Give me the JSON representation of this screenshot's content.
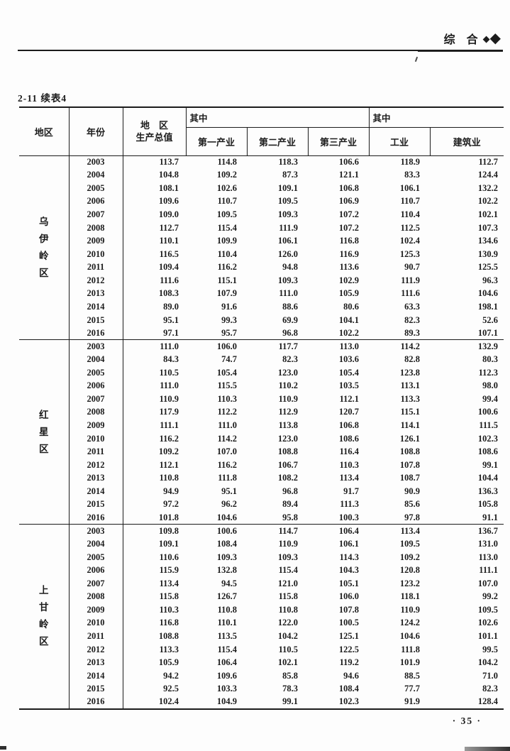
{
  "page_header": {
    "section_title": "综 合",
    "diamond_small": "◆",
    "diamond_large": "◆"
  },
  "table_label": "2-11 续表4",
  "page_number": "· 35 ·",
  "table": {
    "headers": {
      "region": "地区",
      "year": "年份",
      "gdp_line1": "地　区",
      "gdp_line2": "生产总值",
      "among1": "其中",
      "among2": "其中",
      "primary": "第一产业",
      "secondary": "第二产业",
      "tertiary": "第三产业",
      "industry": "工业",
      "construction": "建筑业"
    },
    "blocks": [
      {
        "region": "乌伊岭区",
        "rows": [
          {
            "year": "2003",
            "values": [
              "113.7",
              "114.8",
              "118.3",
              "106.6",
              "118.9",
              "112.7"
            ]
          },
          {
            "year": "2004",
            "values": [
              "104.8",
              "109.2",
              "87.3",
              "121.1",
              "83.3",
              "124.4"
            ]
          },
          {
            "year": "2005",
            "values": [
              "108.1",
              "102.6",
              "109.1",
              "106.8",
              "106.1",
              "132.2"
            ]
          },
          {
            "year": "2006",
            "values": [
              "109.6",
              "110.7",
              "109.5",
              "106.9",
              "110.7",
              "102.2"
            ]
          },
          {
            "year": "2007",
            "values": [
              "109.0",
              "109.5",
              "109.3",
              "107.2",
              "110.4",
              "102.1"
            ]
          },
          {
            "year": "2008",
            "values": [
              "112.7",
              "115.4",
              "111.9",
              "107.2",
              "112.5",
              "107.3"
            ]
          },
          {
            "year": "2009",
            "values": [
              "110.1",
              "109.9",
              "106.1",
              "116.8",
              "102.4",
              "134.6"
            ]
          },
          {
            "year": "2010",
            "values": [
              "116.5",
              "110.4",
              "126.0",
              "116.9",
              "125.3",
              "130.9"
            ]
          },
          {
            "year": "2011",
            "values": [
              "109.4",
              "116.2",
              "94.8",
              "113.6",
              "90.7",
              "125.5"
            ]
          },
          {
            "year": "2012",
            "values": [
              "111.6",
              "115.1",
              "109.3",
              "102.9",
              "111.9",
              "96.3"
            ]
          },
          {
            "year": "2013",
            "values": [
              "108.3",
              "107.9",
              "111.0",
              "105.9",
              "111.6",
              "104.6"
            ]
          },
          {
            "year": "2014",
            "values": [
              "89.0",
              "91.6",
              "88.6",
              "80.6",
              "63.3",
              "198.1"
            ]
          },
          {
            "year": "2015",
            "values": [
              "95.1",
              "99.3",
              "69.9",
              "104.1",
              "82.3",
              "52.6"
            ]
          },
          {
            "year": "2016",
            "values": [
              "97.1",
              "95.7",
              "96.8",
              "102.2",
              "89.3",
              "107.1"
            ]
          }
        ]
      },
      {
        "region": "红星区",
        "rows": [
          {
            "year": "2003",
            "values": [
              "111.0",
              "106.0",
              "117.7",
              "113.0",
              "114.2",
              "132.9"
            ]
          },
          {
            "year": "2004",
            "values": [
              "84.3",
              "74.7",
              "82.3",
              "103.6",
              "82.8",
              "80.3"
            ]
          },
          {
            "year": "2005",
            "values": [
              "110.5",
              "105.4",
              "123.0",
              "105.4",
              "123.8",
              "112.3"
            ]
          },
          {
            "year": "2006",
            "values": [
              "111.0",
              "115.5",
              "110.2",
              "103.5",
              "113.1",
              "98.0"
            ]
          },
          {
            "year": "2007",
            "values": [
              "110.9",
              "110.3",
              "110.9",
              "112.1",
              "113.3",
              "99.4"
            ]
          },
          {
            "year": "2008",
            "values": [
              "117.9",
              "112.2",
              "112.9",
              "120.7",
              "115.1",
              "100.6"
            ]
          },
          {
            "year": "2009",
            "values": [
              "111.1",
              "111.0",
              "113.8",
              "106.8",
              "114.1",
              "111.5"
            ]
          },
          {
            "year": "2010",
            "values": [
              "116.2",
              "114.2",
              "123.0",
              "108.6",
              "126.1",
              "102.3"
            ]
          },
          {
            "year": "2011",
            "values": [
              "109.2",
              "107.0",
              "108.8",
              "116.4",
              "108.8",
              "108.6"
            ]
          },
          {
            "year": "2012",
            "values": [
              "112.1",
              "116.2",
              "106.7",
              "110.3",
              "107.8",
              "99.1"
            ]
          },
          {
            "year": "2013",
            "values": [
              "110.8",
              "111.8",
              "108.2",
              "113.4",
              "108.7",
              "104.4"
            ]
          },
          {
            "year": "2014",
            "values": [
              "94.9",
              "95.1",
              "96.8",
              "91.7",
              "90.9",
              "136.3"
            ]
          },
          {
            "year": "2015",
            "values": [
              "97.2",
              "96.2",
              "89.4",
              "111.3",
              "85.6",
              "105.8"
            ]
          },
          {
            "year": "2016",
            "values": [
              "101.8",
              "104.6",
              "95.8",
              "100.3",
              "97.8",
              "91.1"
            ]
          }
        ]
      },
      {
        "region": "上甘岭区",
        "rows": [
          {
            "year": "2003",
            "values": [
              "109.8",
              "100.6",
              "114.7",
              "106.4",
              "113.4",
              "136.7"
            ]
          },
          {
            "year": "2004",
            "values": [
              "109.1",
              "108.4",
              "110.9",
              "106.1",
              "109.5",
              "131.0"
            ]
          },
          {
            "year": "2005",
            "values": [
              "110.6",
              "109.3",
              "109.3",
              "114.3",
              "109.2",
              "113.0"
            ]
          },
          {
            "year": "2006",
            "values": [
              "115.9",
              "132.8",
              "115.4",
              "104.3",
              "120.8",
              "111.1"
            ]
          },
          {
            "year": "2007",
            "values": [
              "113.4",
              "94.5",
              "121.0",
              "105.1",
              "123.2",
              "107.0"
            ]
          },
          {
            "year": "2008",
            "values": [
              "115.8",
              "126.7",
              "115.8",
              "106.0",
              "118.1",
              "99.2"
            ]
          },
          {
            "year": "2009",
            "values": [
              "110.3",
              "110.8",
              "110.8",
              "107.8",
              "110.9",
              "109.5"
            ]
          },
          {
            "year": "2010",
            "values": [
              "116.8",
              "110.1",
              "122.0",
              "100.5",
              "124.2",
              "102.6"
            ]
          },
          {
            "year": "2011",
            "values": [
              "108.8",
              "113.5",
              "104.2",
              "125.1",
              "104.6",
              "101.1"
            ]
          },
          {
            "year": "2012",
            "values": [
              "113.3",
              "115.4",
              "110.5",
              "122.5",
              "111.8",
              "99.5"
            ]
          },
          {
            "year": "2013",
            "values": [
              "105.9",
              "106.4",
              "102.1",
              "119.2",
              "101.9",
              "104.2"
            ]
          },
          {
            "year": "2014",
            "values": [
              "94.2",
              "109.6",
              "85.8",
              "94.6",
              "88.5",
              "71.0"
            ]
          },
          {
            "year": "2015",
            "values": [
              "92.5",
              "103.3",
              "78.3",
              "108.4",
              "77.7",
              "82.3"
            ]
          },
          {
            "year": "2016",
            "values": [
              "102.4",
              "104.9",
              "99.1",
              "102.3",
              "91.9",
              "128.4"
            ]
          }
        ]
      }
    ]
  }
}
